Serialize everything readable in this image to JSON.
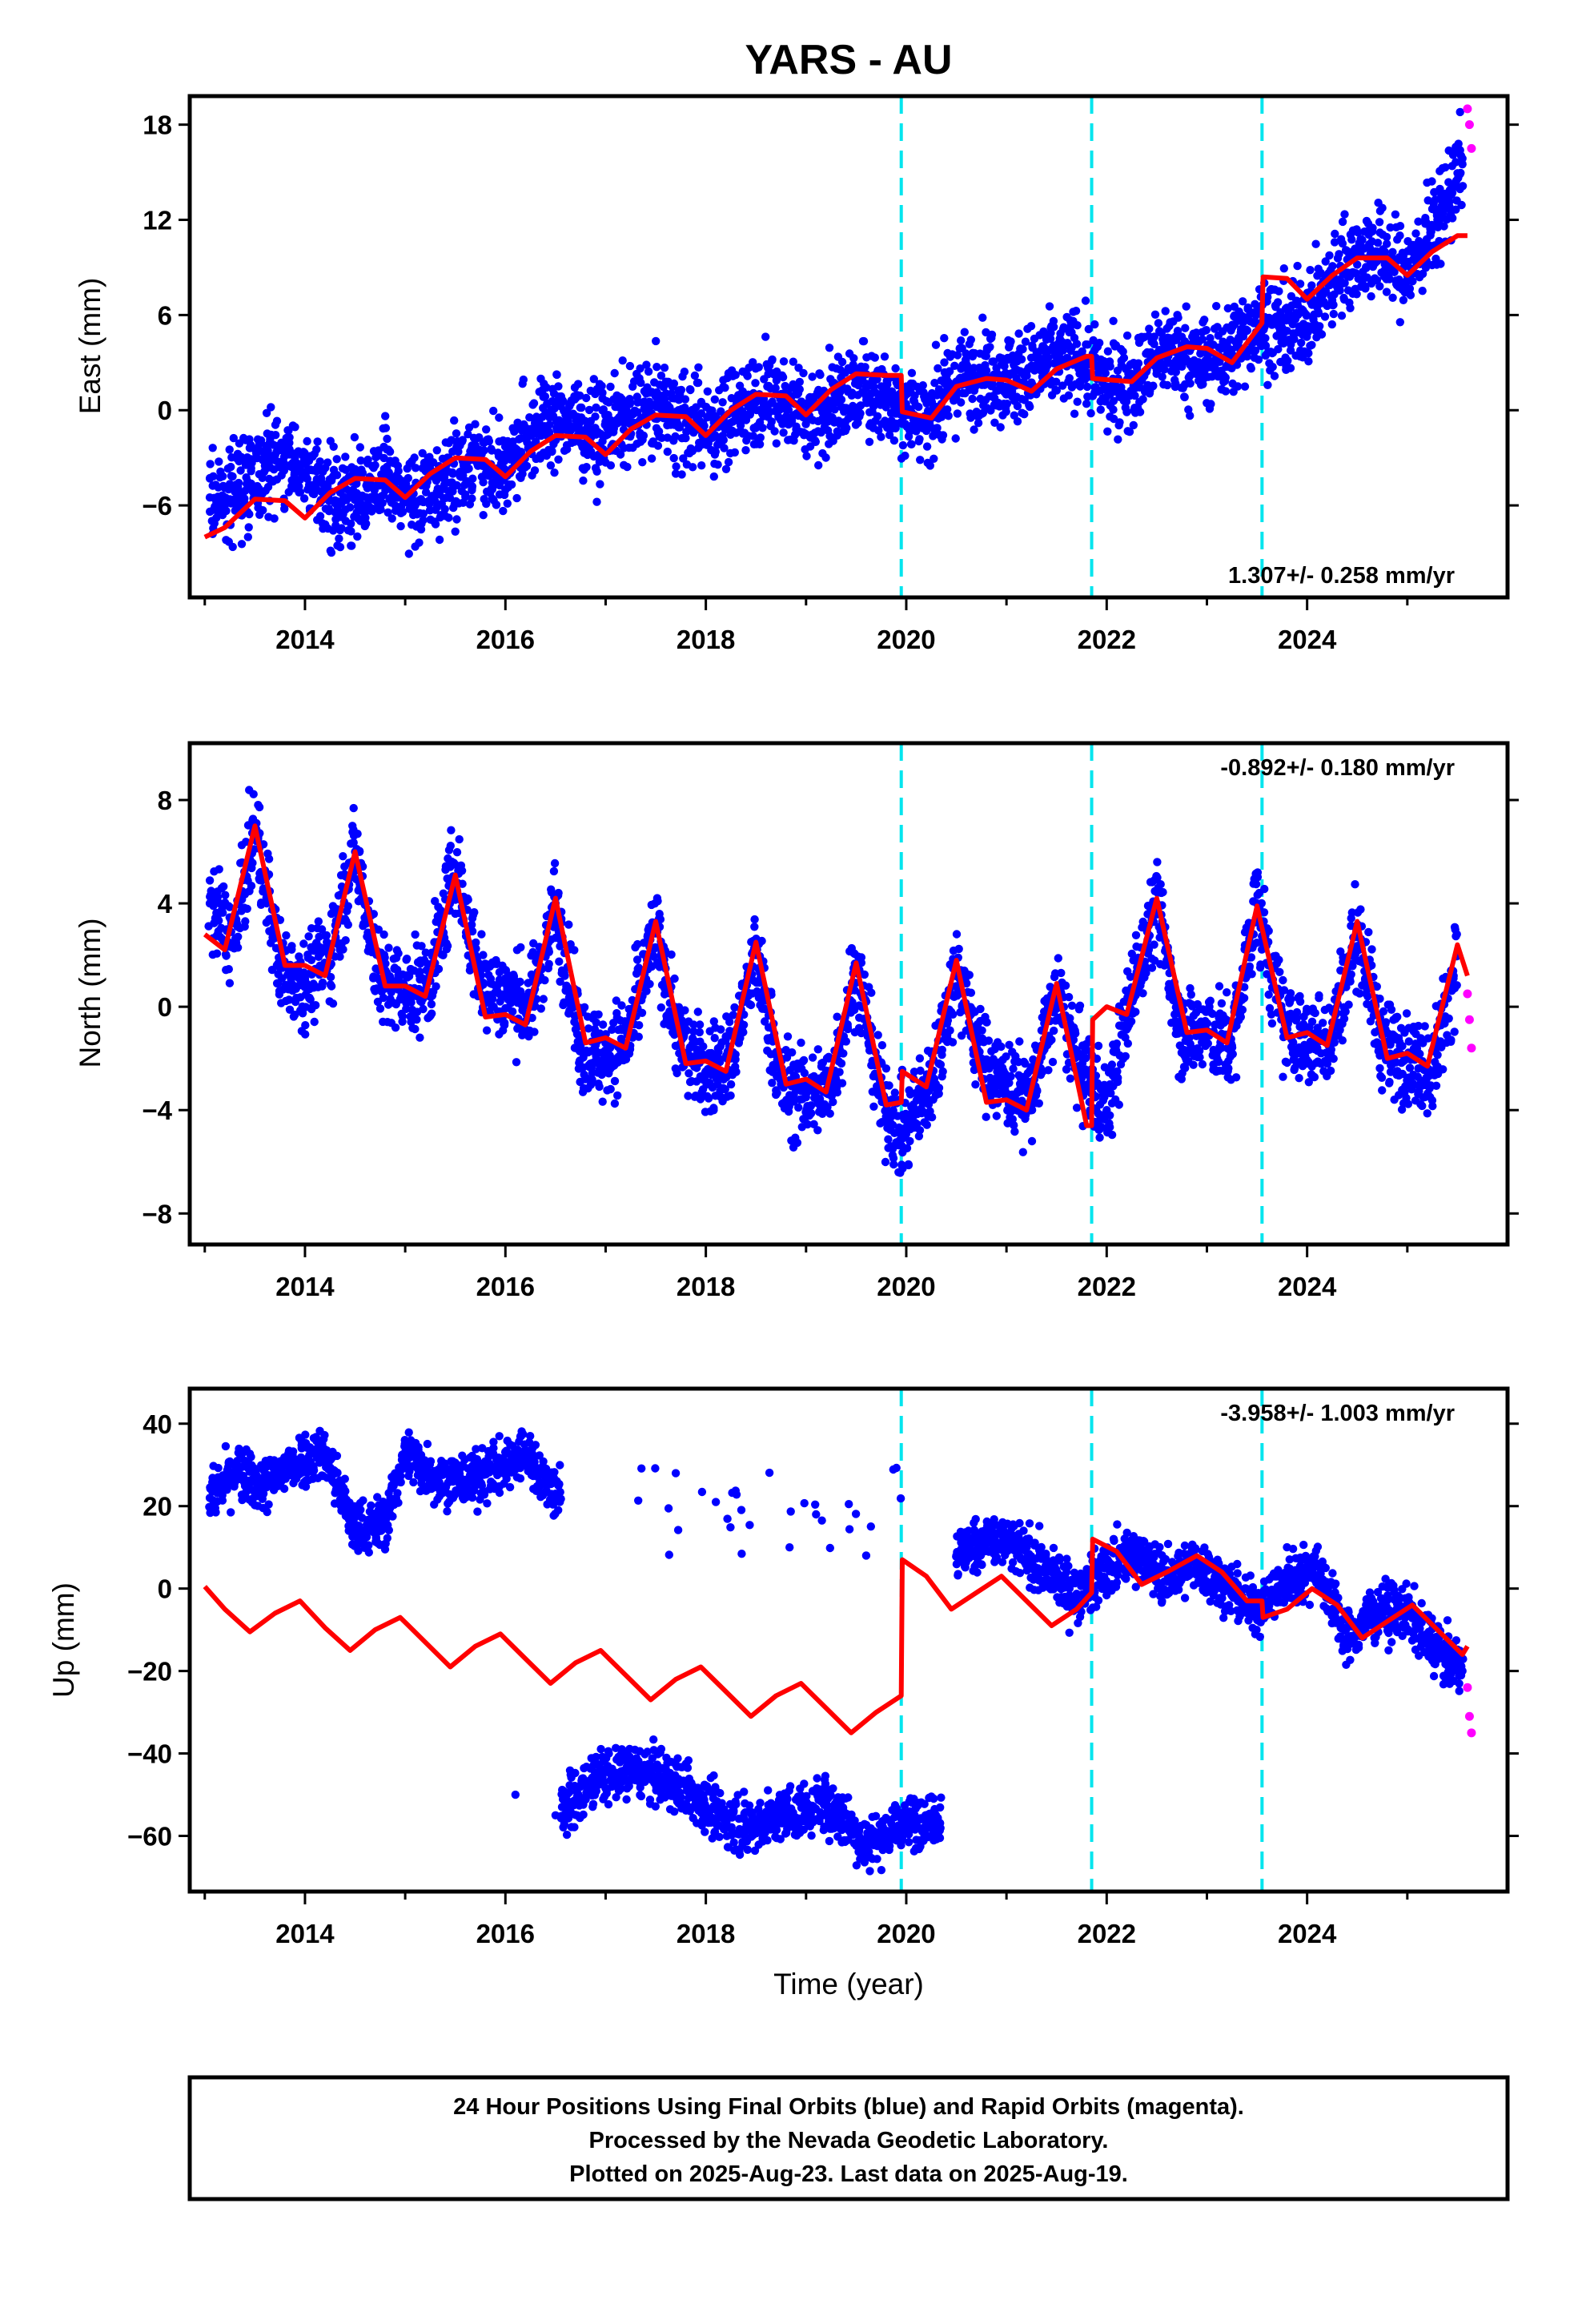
{
  "chart_data": {
    "title": "YARS - AU",
    "type": "scatter",
    "xlabel": "Time (year)",
    "xlim": [
      2012.85,
      2026.0
    ],
    "xticks": [
      2014,
      2016,
      2018,
      2020,
      2022,
      2024
    ],
    "grid": false,
    "offset_epochs": [
      2019.95,
      2021.85,
      2023.55
    ],
    "colors": {
      "final": "#0000ff",
      "rapid": "#ff00ff",
      "model": "#ff0000",
      "offsets": "#00e5ee"
    },
    "panels": [
      {
        "component": "east",
        "ylabel": "East (mm)",
        "ylim": [
          -11.8,
          19.8
        ],
        "yticks": [
          -6,
          0,
          6,
          12,
          18
        ],
        "rate_text": "1.307+/- 0.258 mm/yr",
        "rate_position": "bottom-right",
        "series": [
          {
            "name": "Final Orbits (blue)",
            "x": [
              2013.05,
              2013.3,
              2013.6,
              2013.9,
              2014.2,
              2014.5,
              2014.8,
              2015.1,
              2015.4,
              2015.7,
              2016.0,
              2016.3,
              2016.6,
              2016.9,
              2017.2,
              2017.5,
              2017.8,
              2018.1,
              2018.4,
              2018.7,
              2019.0,
              2019.3,
              2019.6,
              2019.9,
              2020.2,
              2020.5,
              2020.8,
              2021.1,
              2021.4,
              2021.7,
              2022.0,
              2022.3,
              2022.6,
              2022.9,
              2023.2,
              2023.5,
              2023.8,
              2024.1,
              2024.4,
              2024.7,
              2025.0,
              2025.3,
              2025.55
            ],
            "y": [
              -5.5,
              -5.0,
              -3.5,
              -3.0,
              -5.5,
              -5.5,
              -4.0,
              -6.0,
              -4.5,
              -3.0,
              -3.8,
              -1.0,
              -0.3,
              -1.5,
              -0.5,
              0.3,
              -0.8,
              -1.0,
              0.5,
              1.0,
              -0.3,
              0.5,
              1.5,
              0.5,
              -0.5,
              1.8,
              2.5,
              2.0,
              3.0,
              3.5,
              1.5,
              2.0,
              4.0,
              3.0,
              3.5,
              5.5,
              5.0,
              6.5,
              9.5,
              10.0,
              8.5,
              12.0,
              15.5
            ]
          },
          {
            "name": "Rapid Orbits (magenta)",
            "x": [
              2025.6,
              2025.62,
              2025.64
            ],
            "y": [
              19.0,
              18.0,
              16.5
            ]
          },
          {
            "name": "model",
            "x": [
              2013.0,
              2013.2,
              2013.5,
              2013.8,
              2014.0,
              2014.25,
              2014.5,
              2014.8,
              2015.0,
              2015.25,
              2015.5,
              2015.8,
              2016.0,
              2016.25,
              2016.5,
              2016.8,
              2017.0,
              2017.25,
              2017.5,
              2017.8,
              2018.0,
              2018.25,
              2018.5,
              2018.8,
              2019.0,
              2019.25,
              2019.5,
              2019.8,
              2019.95,
              2019.96,
              2020.25,
              2020.5,
              2020.8,
              2021.0,
              2021.25,
              2021.5,
              2021.8,
              2021.85,
              2021.86,
              2022.25,
              2022.5,
              2022.8,
              2023.0,
              2023.25,
              2023.55,
              2023.56,
              2023.8,
              2024.0,
              2024.25,
              2024.5,
              2024.8,
              2025.0,
              2025.25,
              2025.5,
              2025.6
            ],
            "y": [
              -8.0,
              -7.4,
              -5.6,
              -5.7,
              -6.8,
              -5.2,
              -4.3,
              -4.4,
              -5.5,
              -4.0,
              -3.0,
              -3.1,
              -4.2,
              -2.6,
              -1.6,
              -1.7,
              -2.8,
              -1.2,
              -0.3,
              -0.4,
              -1.6,
              0.0,
              1.0,
              0.9,
              -0.3,
              1.3,
              2.3,
              2.2,
              2.2,
              -0.1,
              -0.5,
              1.5,
              2.0,
              1.9,
              1.2,
              2.6,
              3.4,
              3.4,
              2.0,
              1.8,
              3.3,
              4.0,
              3.9,
              3.0,
              5.5,
              8.4,
              8.3,
              7.0,
              8.5,
              9.6,
              9.6,
              8.5,
              10.0,
              11.0,
              11.0
            ]
          }
        ]
      },
      {
        "component": "north",
        "ylabel": "North (mm)",
        "ylim": [
          -9.2,
          10.2
        ],
        "yticks": [
          -8,
          -4,
          0,
          4,
          8
        ],
        "rate_text": "-0.892+/- 0.180 mm/yr",
        "rate_position": "top-right",
        "series": [
          {
            "name": "Final Orbits (blue)",
            "x": [
              2013.05,
              2013.3,
              2013.5,
              2013.75,
              2014.0,
              2014.25,
              2014.5,
              2014.75,
              2015.0,
              2015.25,
              2015.5,
              2015.75,
              2016.0,
              2016.25,
              2016.5,
              2016.75,
              2017.0,
              2017.25,
              2017.5,
              2017.75,
              2018.0,
              2018.25,
              2018.5,
              2018.75,
              2019.0,
              2019.25,
              2019.5,
              2019.75,
              2019.95,
              2020.1,
              2020.25,
              2020.5,
              2020.75,
              2021.0,
              2021.25,
              2021.5,
              2021.75,
              2022.0,
              2022.25,
              2022.5,
              2022.75,
              2023.0,
              2023.25,
              2023.5,
              2023.75,
              2024.0,
              2024.25,
              2024.5,
              2024.75,
              2025.0,
              2025.25,
              2025.5
            ],
            "y": [
              4.0,
              2.5,
              7.0,
              1.5,
              1.0,
              2.0,
              6.0,
              1.0,
              0.5,
              1.0,
              5.5,
              1.0,
              0.5,
              0.0,
              4.0,
              -1.5,
              -2.0,
              -1.0,
              3.0,
              -1.5,
              -2.5,
              -2.0,
              2.0,
              -3.0,
              -3.5,
              -3.0,
              1.5,
              -3.5,
              -5.0,
              -4.0,
              -3.0,
              1.5,
              -2.0,
              -3.0,
              -3.5,
              0.5,
              -2.5,
              -4.0,
              0.5,
              4.0,
              -1.0,
              -1.0,
              -1.5,
              4.0,
              -0.5,
              -1.5,
              -1.0,
              3.0,
              -1.5,
              -2.0,
              -2.5,
              2.0
            ]
          },
          {
            "name": "Rapid Orbits (magenta)",
            "x": [
              2025.6,
              2025.62,
              2025.64
            ],
            "y": [
              0.5,
              -0.5,
              -1.6
            ]
          },
          {
            "name": "model",
            "x": [
              2013.0,
              2013.2,
              2013.5,
              2013.8,
              2014.0,
              2014.2,
              2014.5,
              2014.8,
              2015.0,
              2015.2,
              2015.5,
              2015.8,
              2016.0,
              2016.2,
              2016.5,
              2016.8,
              2017.0,
              2017.2,
              2017.5,
              2017.8,
              2018.0,
              2018.2,
              2018.5,
              2018.8,
              2019.0,
              2019.2,
              2019.5,
              2019.8,
              2019.95,
              2019.96,
              2020.2,
              2020.5,
              2020.8,
              2021.0,
              2021.2,
              2021.5,
              2021.8,
              2021.85,
              2021.86,
              2022.0,
              2022.2,
              2022.5,
              2022.8,
              2023.0,
              2023.2,
              2023.5,
              2023.8,
              2024.0,
              2024.2,
              2024.5,
              2024.8,
              2025.0,
              2025.2,
              2025.5,
              2025.6
            ],
            "y": [
              2.8,
              2.2,
              7.0,
              1.6,
              1.6,
              1.2,
              6.0,
              0.8,
              0.8,
              0.4,
              5.1,
              -0.4,
              -0.3,
              -0.7,
              4.2,
              -1.4,
              -1.2,
              -1.6,
              3.3,
              -2.2,
              -2.1,
              -2.5,
              2.5,
              -3.0,
              -2.8,
              -3.3,
              1.7,
              -3.8,
              -3.7,
              -2.5,
              -3.1,
              1.8,
              -3.7,
              -3.6,
              -4.0,
              0.9,
              -4.6,
              -4.6,
              -0.5,
              0.0,
              -0.3,
              4.2,
              -1.0,
              -0.9,
              -1.4,
              3.9,
              -1.2,
              -1.0,
              -1.5,
              3.3,
              -2.0,
              -1.8,
              -2.3,
              2.4,
              1.2
            ]
          }
        ]
      },
      {
        "component": "up",
        "ylabel": "Up (mm)",
        "ylim": [
          -73.5,
          48.5
        ],
        "yticks": [
          -60,
          -40,
          -20,
          0,
          20,
          40
        ],
        "rate_text": "-3.958+/- 1.003 mm/yr",
        "rate_position": "top-right",
        "series": [
          {
            "name": "Final Orbits (blue)",
            "x": [
              2013.05,
              2013.3,
              2013.6,
              2013.9,
              2014.2,
              2014.5,
              2014.8,
              2015.0,
              2015.3,
              2015.6,
              2015.9,
              2016.2,
              2016.5,
              2017.7,
              2018.1,
              2019.1,
              2019.6,
              2016.1,
              2016.5,
              2016.9,
              2017.3,
              2017.7,
              2018.0,
              2018.4,
              2018.8,
              2019.2,
              2019.6,
              2019.9,
              2020.2,
              2020.5,
              2020.8,
              2021.1,
              2021.4,
              2021.7,
              2022.0,
              2022.3,
              2022.6,
              2022.9,
              2023.2,
              2023.5,
              2023.8,
              2024.1,
              2024.4,
              2024.7,
              2025.0,
              2025.3,
              2025.55
            ],
            "y": [
              22.0,
              28.0,
              25.0,
              31.0,
              33.0,
              14.0,
              16.0,
              33.0,
              27.0,
              26.0,
              29.0,
              33.0,
              23.0,
              28.0,
              21.0,
              18.0,
              8.0,
              -50.0,
              -55.0,
              -46.0,
              -44.0,
              -47.0,
              -53.0,
              -58.0,
              -55.0,
              -52.0,
              -62.0,
              -58.0,
              -55.0,
              8.0,
              12.0,
              10.0,
              4.0,
              -2.0,
              5.0,
              9.0,
              2.0,
              6.0,
              0.0,
              -5.0,
              2.0,
              6.0,
              -12.0,
              -5.0,
              -6.0,
              -15.0,
              -20.0
            ]
          },
          {
            "name": "Rapid Orbits (magenta)",
            "x": [
              2025.6,
              2025.62,
              2025.64
            ],
            "y": [
              -24.0,
              -31.0,
              -35.0
            ]
          },
          {
            "name": "model",
            "x": [
              2013.0,
              2013.2,
              2013.45,
              2013.7,
              2013.95,
              2014.2,
              2014.45,
              2014.7,
              2014.95,
              2015.2,
              2015.45,
              2015.7,
              2015.95,
              2016.2,
              2016.45,
              2016.7,
              2016.95,
              2017.2,
              2017.45,
              2017.7,
              2017.95,
              2018.2,
              2018.45,
              2018.7,
              2018.95,
              2019.2,
              2019.45,
              2019.7,
              2019.95,
              2019.96,
              2020.2,
              2020.45,
              2020.7,
              2020.95,
              2021.2,
              2021.45,
              2021.7,
              2021.85,
              2021.86,
              2022.1,
              2022.35,
              2022.6,
              2022.9,
              2023.15,
              2023.4,
              2023.55,
              2023.56,
              2023.8,
              2024.05,
              2024.3,
              2024.55,
              2024.8,
              2025.05,
              2025.3,
              2025.55,
              2025.6
            ],
            "y": [
              0.5,
              -5.0,
              -10.5,
              -6.0,
              -3.0,
              -9.5,
              -15.0,
              -10.0,
              -7.0,
              -13.0,
              -19.0,
              -14.0,
              -11.0,
              -17.0,
              -23.0,
              -18.0,
              -15.0,
              -21.0,
              -27.0,
              -22.0,
              -19.0,
              -25.0,
              -31.0,
              -26.0,
              -23.0,
              -29.0,
              -35.0,
              -30.0,
              -26.0,
              7.0,
              3.0,
              -5.0,
              -1.0,
              3.0,
              -3.0,
              -9.0,
              -5.0,
              -1.0,
              12.0,
              9.0,
              1.0,
              4.0,
              8.0,
              4.0,
              -3.0,
              -3.0,
              -7.0,
              -5.0,
              0.0,
              -4.0,
              -12.0,
              -8.0,
              -4.0,
              -10.0,
              -16.0,
              -14.0
            ]
          }
        ]
      }
    ],
    "footer": [
      "24 Hour Positions Using Final Orbits (blue) and Rapid Orbits (magenta).",
      "Processed by the Nevada Geodetic Laboratory.",
      "Plotted on 2025-Aug-23. Last data on 2025-Aug-19."
    ]
  }
}
